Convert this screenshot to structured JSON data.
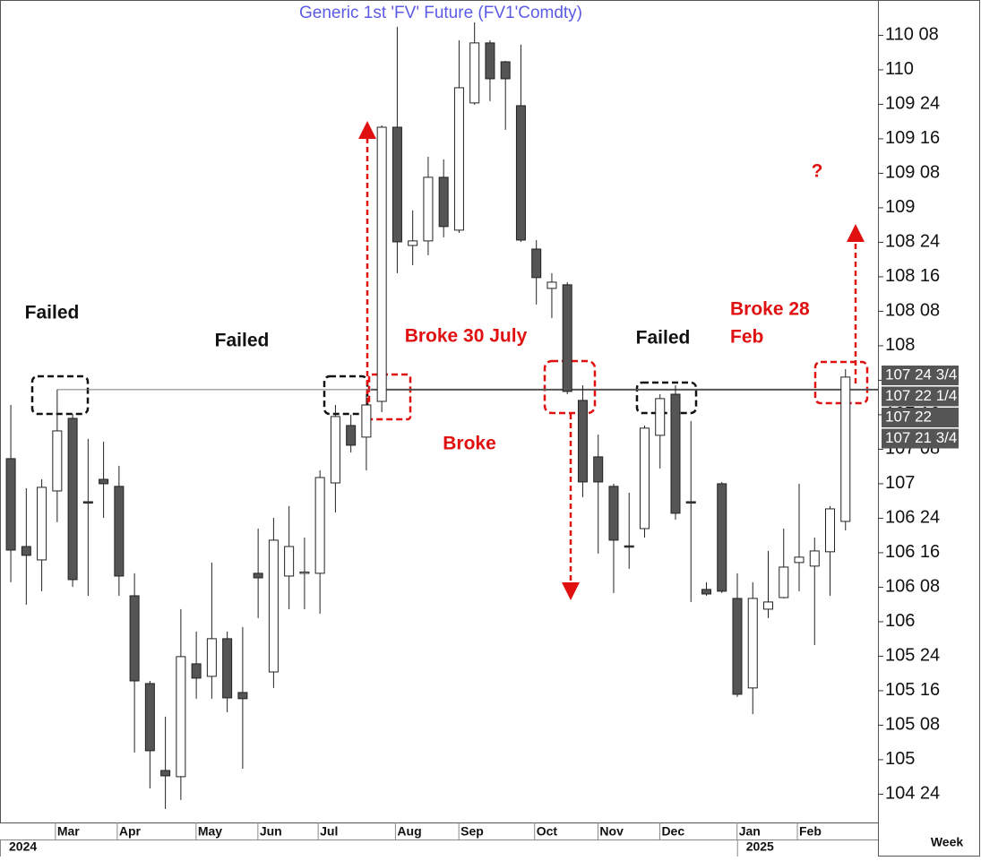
{
  "chart_data": {
    "type": "candlestick",
    "title": "Generic  1st  'FV'  Future  (FV1'Comdty)",
    "x_axis_label": "Week",
    "up_color": "#ffffff",
    "down_color": "#555555",
    "open": [
      107.182,
      106.545,
      106.448,
      106.948,
      107.474,
      106.87,
      107.032,
      106.981,
      106.188,
      105.552,
      104.922,
      104.877,
      105.695,
      105.604,
      105.877,
      105.487,
      106.351,
      105.636,
      106.331,
      106.351,
      106.351,
      107.006,
      107.422,
      107.338,
      107.597,
      109.584,
      108.727,
      108.76,
      109.221,
      108.838,
      109.76,
      110.195,
      110.058,
      109.74,
      108.701,
      108.416,
      108.442,
      107.604,
      107.195,
      106.981,
      106.55,
      106.675,
      107.351,
      107.649,
      106.87,
      106.234,
      107.0,
      106.169,
      105.52,
      106.091,
      106.175,
      106.429,
      106.403,
      106.507,
      106.727
    ],
    "high": [
      107.571,
      106.968,
      107.032,
      107.682,
      107.506,
      107.325,
      107.305,
      107.13,
      106.351,
      105.571,
      105.312,
      106.091,
      105.929,
      106.429,
      105.929,
      105.961,
      106.675,
      106.753,
      106.838,
      106.61,
      107.097,
      107.571,
      107.5,
      107.649,
      109.597,
      110.312,
      108.981,
      109.37,
      109.351,
      110.214,
      110.344,
      110.214,
      110.065,
      110.182,
      108.766,
      108.526,
      108.461,
      107.714,
      107.357,
      107.0,
      106.935,
      107.422,
      107.649,
      107.714,
      107.455,
      106.286,
      107.013,
      106.351,
      106.286,
      106.513,
      106.675,
      107.0,
      106.61,
      106.838,
      107.831
    ],
    "low": [
      106.286,
      106.123,
      106.221,
      106.721,
      106.253,
      106.188,
      106.753,
      106.188,
      105.052,
      104.792,
      104.643,
      104.708,
      105.442,
      105.442,
      105.344,
      104.935,
      106.026,
      105.52,
      106.091,
      106.091,
      106.058,
      106.792,
      107.227,
      107.097,
      107.519,
      108.526,
      108.584,
      108.656,
      108.786,
      108.818,
      109.747,
      109.773,
      109.565,
      108.753,
      108.299,
      108.201,
      107.649,
      106.903,
      106.494,
      106.208,
      106.383,
      106.61,
      107.11,
      106.74,
      106.143,
      106.188,
      106.208,
      105.455,
      105.331,
      106.026,
      106.169,
      106.221,
      105.831,
      106.188,
      106.662
    ],
    "close": [
      106.519,
      106.481,
      106.974,
      107.383,
      106.305,
      106.86,
      107.0,
      106.331,
      105.571,
      105.065,
      104.883,
      105.747,
      105.591,
      105.877,
      105.448,
      105.442,
      106.318,
      106.591,
      106.545,
      106.36,
      107.045,
      107.487,
      107.279,
      107.571,
      109.584,
      108.753,
      108.76,
      109.221,
      108.864,
      109.87,
      110.195,
      109.935,
      109.935,
      108.766,
      108.494,
      108.461,
      107.669,
      107.013,
      107.013,
      106.591,
      106.545,
      107.403,
      107.617,
      106.786,
      106.86,
      106.201,
      106.221,
      105.474,
      106.169,
      106.143,
      106.396,
      106.468,
      106.513,
      106.818,
      107.773
    ],
    "xlim": [
      -0.7,
      56.1
    ],
    "xticks": [
      {
        "value": 3.0,
        "label": "Mar"
      },
      {
        "value": 7.0,
        "label": "Apr"
      },
      {
        "value": 12.1,
        "label": "May"
      },
      {
        "value": 16.1,
        "label": "Jun"
      },
      {
        "value": 20.0,
        "label": "Jul"
      },
      {
        "value": 25.0,
        "label": "Aug"
      },
      {
        "value": 29.1,
        "label": "Sep"
      },
      {
        "value": 34.0,
        "label": "Oct"
      },
      {
        "value": 38.1,
        "label": "Nov"
      },
      {
        "value": 42.1,
        "label": "Dec"
      },
      {
        "value": 47.1,
        "label": "Jan"
      },
      {
        "value": 51.0,
        "label": "Feb"
      }
    ],
    "year_ticks": [
      {
        "value": -0.7,
        "label": "2024"
      },
      {
        "value": 47.1,
        "label": "2025"
      }
    ],
    "ylim": [
      104.545,
      110.506
    ],
    "yticks": [
      {
        "value": 104.75,
        "label": "104 24"
      },
      105,
      {
        "value": 105.25,
        "label": "105 08"
      },
      {
        "value": 105.5,
        "label": "105 16"
      },
      {
        "value": 105.75,
        "label": "105 24"
      },
      106,
      {
        "value": 106.25,
        "label": "106 08"
      },
      {
        "value": 106.5,
        "label": "106 16"
      },
      {
        "value": 106.75,
        "label": "106 24"
      },
      107,
      {
        "value": 107.25,
        "label": "107 08"
      },
      {
        "value": 107.5,
        "label": "107 16"
      },
      {
        "value": 107.75,
        "label": "107 24"
      },
      108,
      {
        "value": 108.25,
        "label": "108 08"
      },
      {
        "value": 108.5,
        "label": "108 16"
      },
      {
        "value": 108.75,
        "label": "108 24"
      },
      109,
      {
        "value": 109.25,
        "label": "109 08"
      },
      {
        "value": 109.5,
        "label": "109 16"
      },
      {
        "value": 109.75,
        "label": "109 24"
      },
      110,
      {
        "value": 110.25,
        "label": "110 08"
      }
    ],
    "reference_line": 107.682,
    "price_tags": [
      {
        "value": 107.773,
        "label": "107 24 3/4"
      },
      {
        "value": 107.695,
        "label": "107 22 1/4"
      },
      {
        "value": 107.6875,
        "label": "107 22"
      },
      {
        "value": 107.68,
        "label": "107 21 3/4"
      }
    ],
    "annotations": [
      {
        "text": "Failed",
        "color": "#111111"
      },
      {
        "text": "Failed",
        "color": "#111111"
      },
      {
        "text": "Broke 30 July",
        "color": "#e01010"
      },
      {
        "text": "Failed",
        "color": "#111111"
      },
      {
        "text": "Broke 28",
        "color": "#e01010"
      },
      {
        "text": "Feb",
        "color": "#e01010"
      },
      {
        "text": "Broke",
        "color": "#e01010"
      },
      {
        "text": "?",
        "color": "#e01010"
      }
    ]
  }
}
